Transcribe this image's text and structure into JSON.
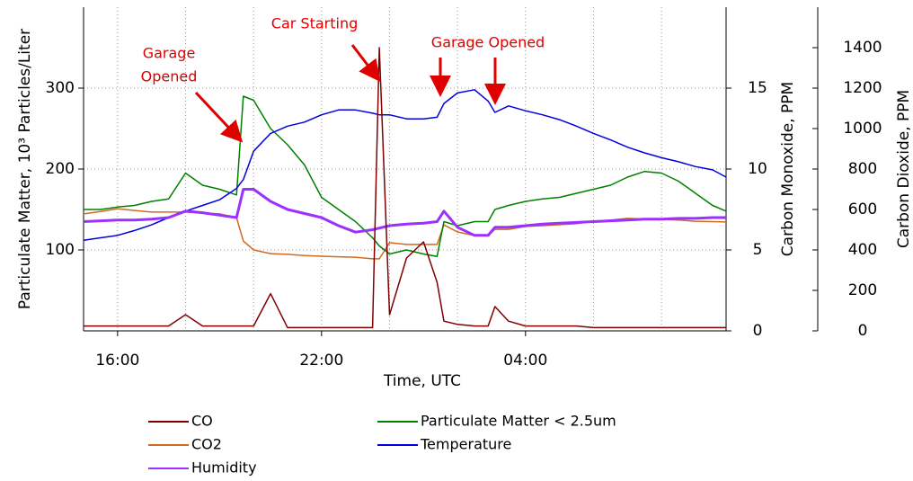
{
  "chart_data": {
    "type": "line",
    "xlabel": "Time, UTC",
    "ylabel": "Particulate Matter, 10³ Particles/Liter",
    "y2label": "Carbon Monoxide, PPM",
    "y3label": "Carbon Dioxide, PPM",
    "x": [
      15,
      15.5,
      16,
      16.5,
      17,
      17.5,
      18,
      18.5,
      19,
      19.5,
      19.7,
      20,
      20.5,
      21,
      21.5,
      22,
      22.5,
      23,
      23.5,
      23.7,
      24,
      24.5,
      25,
      25.4,
      25.6,
      26,
      26.5,
      26.9,
      27.1,
      27.5,
      28,
      28.5,
      29,
      29.5,
      30,
      30.5,
      31,
      31.5,
      32,
      32.5,
      33,
      33.5,
      33.9
    ],
    "xlim": [
      15.0,
      33.9
    ],
    "xticks": [
      {
        "value": 16,
        "label": "16:00"
      },
      {
        "value": 22,
        "label": "22:00"
      },
      {
        "value": 28,
        "label": "04:00"
      }
    ],
    "xgrid_minor": [
      18,
      20,
      24,
      26,
      30,
      32
    ],
    "ylim": [
      0,
      400
    ],
    "yticks": [
      100,
      200,
      300
    ],
    "y2lim": [
      0,
      20
    ],
    "y2ticks": [
      0,
      5,
      10,
      15
    ],
    "y3lim": [
      0,
      1600
    ],
    "y3ticks": [
      0,
      200,
      400,
      600,
      800,
      1000,
      1200,
      1400
    ],
    "grid": true,
    "series": [
      {
        "name": "CO",
        "color": "#800000",
        "axis": "y2",
        "values": [
          0.3,
          0.3,
          0.3,
          0.3,
          0.3,
          0.3,
          1.0,
          0.3,
          0.3,
          0.3,
          0.3,
          0.3,
          2.3,
          0.2,
          0.2,
          0.2,
          0.2,
          0.2,
          0.2,
          17.5,
          1.0,
          4.5,
          5.5,
          3.0,
          0.6,
          0.4,
          0.3,
          0.3,
          1.5,
          0.6,
          0.3,
          0.3,
          0.3,
          0.3,
          0.2,
          0.2,
          0.2,
          0.2,
          0.2,
          0.2,
          0.2,
          0.2,
          0.2
        ]
      },
      {
        "name": "CO2",
        "color": "#d2691e",
        "axis": "y3",
        "values": [
          578,
          590,
          604,
          595,
          587,
          587,
          587,
          582,
          578,
          560,
          444,
          400,
          382,
          378,
          372,
          369,
          366,
          364,
          356,
          356,
          436,
          427,
          427,
          427,
          524,
          489,
          471,
          471,
          502,
          502,
          516,
          520,
          525,
          530,
          542,
          548,
          556,
          553,
          551,
          548,
          542,
          540,
          538
        ]
      },
      {
        "name": "Humidity",
        "color": "#9b30ff",
        "axis": "y",
        "values": [
          135,
          136,
          137,
          137,
          138,
          140,
          148,
          146,
          143,
          140,
          175,
          175,
          160,
          150,
          145,
          140,
          130,
          122,
          125,
          127,
          130,
          132,
          133,
          135,
          148,
          128,
          118,
          118,
          128,
          128,
          130,
          132,
          133,
          134,
          135,
          136,
          137,
          138,
          138,
          139,
          139,
          140,
          140
        ]
      },
      {
        "name": "Particulate Matter < 2.5um",
        "color": "#008000",
        "axis": "y",
        "values": [
          150,
          150,
          153,
          155,
          160,
          163,
          195,
          180,
          175,
          168,
          290,
          285,
          250,
          230,
          205,
          165,
          150,
          135,
          115,
          105,
          95,
          100,
          95,
          92,
          135,
          130,
          135,
          135,
          150,
          155,
          160,
          163,
          165,
          170,
          175,
          180,
          190,
          197,
          195,
          185,
          170,
          155,
          148
        ]
      },
      {
        "name": "Temperature",
        "color": "#0000e0",
        "axis": "y",
        "values": [
          112,
          115,
          118,
          124,
          131,
          140,
          148,
          155,
          162,
          176,
          187,
          222,
          244,
          253,
          258,
          267,
          273,
          273,
          269,
          267,
          267,
          262,
          262,
          264,
          281,
          294,
          298,
          284,
          270,
          278,
          272,
          267,
          261,
          253,
          244,
          236,
          227,
          220,
          214,
          209,
          203,
          199,
          190
        ]
      }
    ],
    "annotations": [
      {
        "lines": [
          "Garage",
          "Opened"
        ]
      },
      {
        "lines": [
          "Car Starting"
        ]
      },
      {
        "lines": [
          "Garage Opened"
        ]
      }
    ]
  }
}
